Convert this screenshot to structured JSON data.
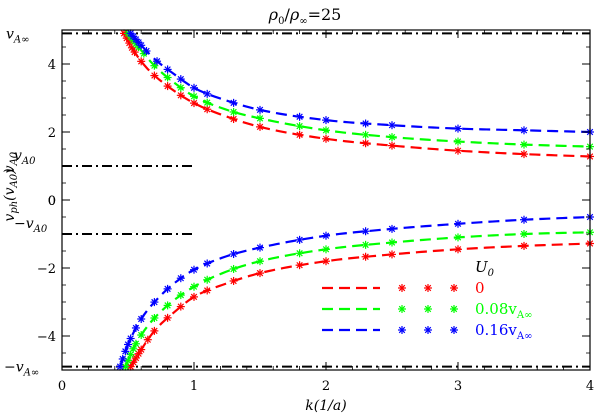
{
  "chart_data": {
    "type": "line",
    "title": "ρ₀/ρ∞=25",
    "xlabel": "k(1/a)",
    "ylabel": "v_ph(v_A0)",
    "xlim": [
      0,
      4
    ],
    "ylim": [
      -5.0,
      5.0
    ],
    "xticks": [
      0,
      1,
      2,
      3,
      4
    ],
    "yticks": [
      -4,
      -2,
      0,
      2,
      4
    ],
    "reference_lines": [
      {
        "name": "vAinf",
        "label": "v",
        "sub": "A∞",
        "neg": false,
        "y": 4.9,
        "x_start": 0,
        "x_end": 4
      },
      {
        "name": "vA0",
        "label": "v",
        "sub": "A0",
        "neg": false,
        "y": 1.0,
        "x_start": 0,
        "x_end": 1
      },
      {
        "name": "neg-vA0",
        "label": "−v",
        "sub": "A0",
        "neg": true,
        "y": -1.0,
        "x_start": 0,
        "x_end": 1
      },
      {
        "name": "neg-vAinf",
        "label": "−v",
        "sub": "A∞",
        "neg": true,
        "y": -4.9,
        "x_start": 0,
        "x_end": 4
      }
    ],
    "ylabel_extra": "v_A0",
    "legend": {
      "title": "U",
      "title_sub": "0",
      "entries": [
        {
          "label": "0",
          "color": "#ff0000"
        },
        {
          "label": "0.08v",
          "sub": "A∞",
          "color": "#00ff00"
        },
        {
          "label": "0.16v",
          "sub": "A∞",
          "color": "#0000ff"
        }
      ]
    },
    "series": [
      {
        "name": "U0=0 upper",
        "color": "#ff0000",
        "x": [
          0.47,
          0.55,
          0.65,
          0.8,
          1.0,
          1.25,
          1.5,
          2.0,
          2.5,
          3.0,
          3.5,
          4.0
        ],
        "y": [
          4.9,
          4.35,
          3.85,
          3.35,
          2.85,
          2.45,
          2.15,
          1.8,
          1.6,
          1.45,
          1.35,
          1.28
        ],
        "markers_x": [
          0.47,
          0.49,
          0.51,
          0.53,
          0.55,
          0.6,
          0.7,
          0.8,
          0.9,
          1.0,
          1.1,
          1.3,
          1.5,
          1.8,
          2.0,
          2.3,
          2.5,
          3.0,
          3.5,
          4.0
        ]
      },
      {
        "name": "U0=0.08 upper",
        "color": "#00ff00",
        "x": [
          0.5,
          0.6,
          0.7,
          0.85,
          1.0,
          1.25,
          1.5,
          2.0,
          2.5,
          3.0,
          3.5,
          4.0
        ],
        "y": [
          4.9,
          4.4,
          3.95,
          3.45,
          3.05,
          2.65,
          2.4,
          2.05,
          1.85,
          1.72,
          1.63,
          1.57
        ],
        "markers_x": [
          0.5,
          0.52,
          0.54,
          0.56,
          0.58,
          0.62,
          0.7,
          0.8,
          0.9,
          1.0,
          1.1,
          1.3,
          1.5,
          1.8,
          2.0,
          2.3,
          2.5,
          3.0,
          3.5,
          4.0
        ]
      },
      {
        "name": "U0=0.16 upper",
        "color": "#0000ff",
        "x": [
          0.52,
          0.6,
          0.7,
          0.85,
          1.0,
          1.25,
          1.5,
          2.0,
          2.5,
          3.0,
          3.5,
          4.0
        ],
        "y": [
          4.9,
          4.55,
          4.15,
          3.7,
          3.3,
          2.92,
          2.65,
          2.35,
          2.2,
          2.1,
          2.05,
          2.0
        ],
        "markers_x": [
          0.52,
          0.54,
          0.56,
          0.58,
          0.6,
          0.64,
          0.72,
          0.8,
          0.9,
          1.0,
          1.1,
          1.3,
          1.5,
          1.8,
          2.0,
          2.3,
          2.5,
          3.0,
          3.5,
          4.0
        ]
      },
      {
        "name": "U0=0 lower",
        "color": "#ff0000",
        "x": [
          0.52,
          0.6,
          0.7,
          0.85,
          1.0,
          1.25,
          1.5,
          2.0,
          2.5,
          3.0,
          3.5,
          4.0
        ],
        "y": [
          -4.9,
          -4.4,
          -3.85,
          -3.3,
          -2.85,
          -2.45,
          -2.15,
          -1.8,
          -1.6,
          -1.45,
          -1.35,
          -1.28
        ],
        "markers_x": [
          0.52,
          0.54,
          0.56,
          0.58,
          0.6,
          0.65,
          0.7,
          0.8,
          0.9,
          1.0,
          1.1,
          1.3,
          1.5,
          1.8,
          2.0,
          2.3,
          2.5,
          3.0,
          3.5,
          4.0
        ]
      },
      {
        "name": "U0=0.08 lower",
        "color": "#00ff00",
        "x": [
          0.48,
          0.55,
          0.65,
          0.8,
          1.0,
          1.25,
          1.5,
          2.0,
          2.5,
          3.0,
          3.5,
          4.0
        ],
        "y": [
          -4.9,
          -4.3,
          -3.7,
          -3.1,
          -2.55,
          -2.1,
          -1.8,
          -1.45,
          -1.25,
          -1.1,
          -1.0,
          -0.95
        ],
        "markers_x": [
          0.48,
          0.5,
          0.52,
          0.54,
          0.56,
          0.6,
          0.7,
          0.8,
          0.9,
          1.0,
          1.1,
          1.3,
          1.5,
          1.8,
          2.0,
          2.3,
          2.5,
          3.0,
          3.5,
          4.0
        ]
      },
      {
        "name": "U0=0.16 lower",
        "color": "#0000ff",
        "x": [
          0.44,
          0.5,
          0.6,
          0.75,
          0.9,
          1.0,
          1.25,
          1.5,
          2.0,
          2.5,
          3.0,
          3.5,
          4.0
        ],
        "y": [
          -4.9,
          -4.25,
          -3.5,
          -2.8,
          -2.3,
          -2.05,
          -1.65,
          -1.4,
          -1.05,
          -0.85,
          -0.7,
          -0.58,
          -0.5
        ],
        "markers_x": [
          0.44,
          0.46,
          0.48,
          0.5,
          0.52,
          0.56,
          0.6,
          0.7,
          0.8,
          0.9,
          1.0,
          1.1,
          1.3,
          1.5,
          1.8,
          2.0,
          2.3,
          2.5,
          3.0,
          3.5,
          4.0
        ]
      }
    ]
  }
}
